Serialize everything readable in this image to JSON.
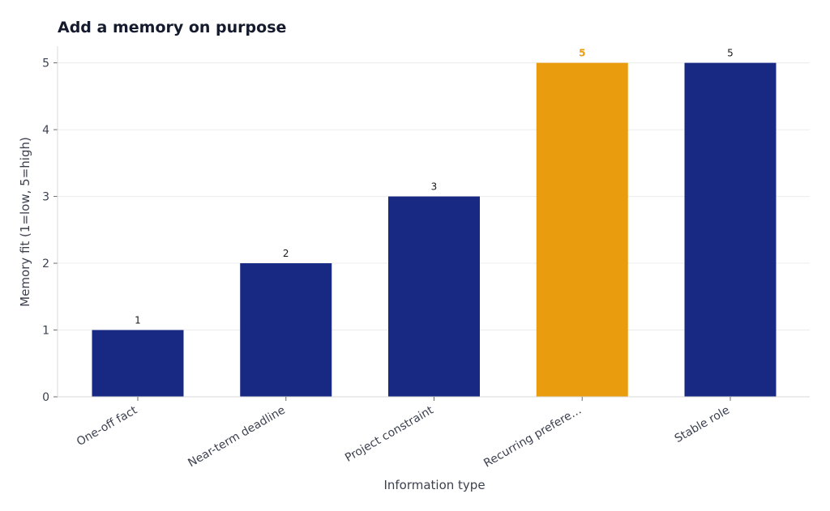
{
  "chart_data": {
    "type": "bar",
    "title": "Add a memory on purpose",
    "xlabel": "Information type",
    "ylabel": "Memory fit (1=low, 5=high)",
    "categories": [
      "One-off fact",
      "Near-term deadline",
      "Project constraint",
      "Recurring prefere…",
      "Stable role"
    ],
    "values": [
      1,
      2,
      3,
      5,
      5
    ],
    "ylim": [
      0,
      5.25
    ],
    "yticks": [
      0,
      1,
      2,
      3,
      4,
      5
    ],
    "grid": true,
    "highlight_index": 3,
    "colors": {
      "bar": "#172983",
      "highlight": "#e99c0d",
      "highlight_label": "#e99c0d"
    }
  }
}
